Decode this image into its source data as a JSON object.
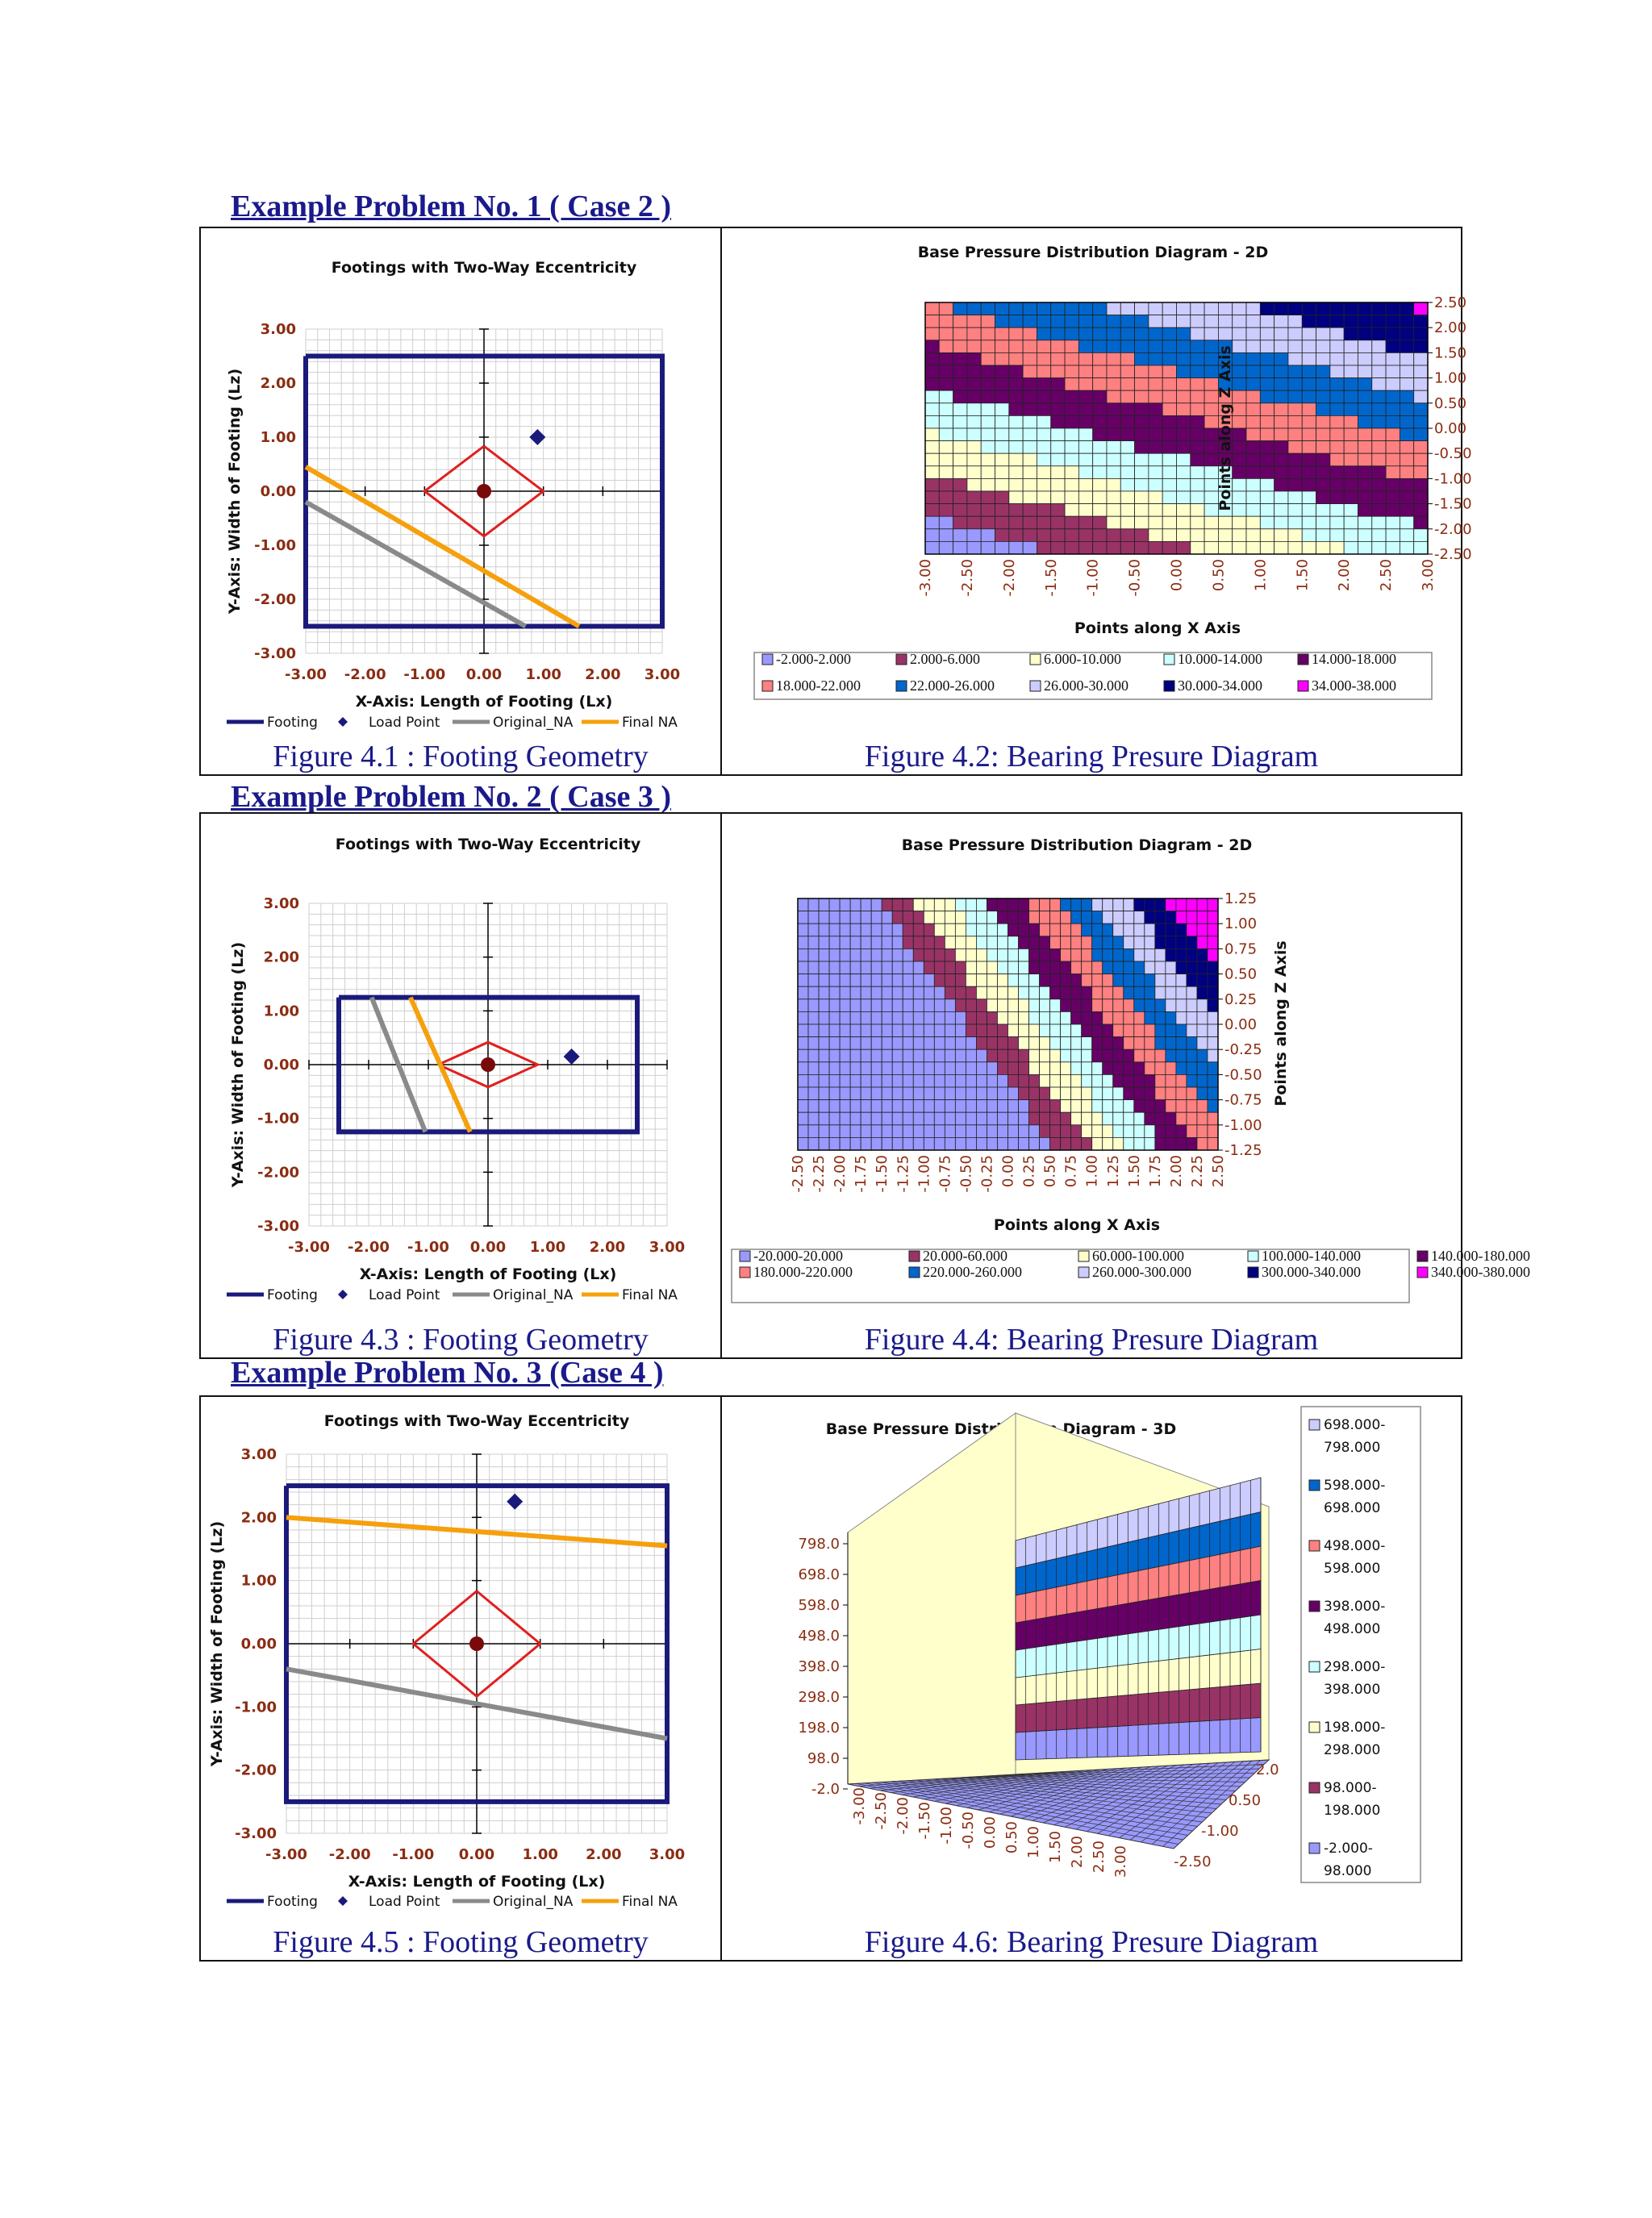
{
  "headings": [
    "Example Problem No. 1 ( Case 2 )",
    "Example Problem No. 2 ( Case 3 )",
    "Example Problem No. 3 (Case 4 )"
  ],
  "captions": [
    "Figure 4.1 : Footing Geometry",
    "Figure 4.2:  Bearing Presure Diagram",
    "Figure 4.3 : Footing Geometry",
    "Figure 4.4:  Bearing Presure Diagram",
    "Figure 4.5 : Footing Geometry",
    "Figure 4.6:  Bearing Presure Diagram"
  ],
  "chart_data": [
    {
      "type": "line",
      "title": "Footings with Two-Way Eccentricity",
      "xlabel": "X-Axis: Length of Footing (Lx)",
      "ylabel": "Y-Axis: Width of Footing (Lz)",
      "xlim": [
        -3,
        3
      ],
      "ylim": [
        -3,
        3
      ],
      "x_ticks": [
        "-3.00",
        "-2.00",
        "-1.00",
        "0.00",
        "1.00",
        "2.00",
        "3.00"
      ],
      "y_ticks": [
        "3.00",
        "2.00",
        "1.00",
        "0.00",
        "-1.00",
        "-2.00",
        "-3.00"
      ],
      "grid": true,
      "legend": [
        "Footing",
        "Load Point",
        "Original_NA",
        "Final NA"
      ],
      "colors": {
        "footing": "#1a1a7a",
        "load": "#1a1a7a",
        "original": "#8a8a8a",
        "final": "#f5a00c",
        "kern": "#e02020",
        "centroid": "#7a0a0a"
      },
      "footing": {
        "x": [
          -3,
          3,
          3,
          -3,
          -3
        ],
        "y": [
          2.5,
          2.5,
          -2.5,
          -2.5,
          2.5
        ]
      },
      "kern": {
        "x": [
          0,
          1,
          0,
          -1,
          0
        ],
        "y": [
          0.833,
          0,
          -0.833,
          0,
          0.833
        ]
      },
      "load_point": [
        0.9,
        1.0
      ],
      "original_na": {
        "x": [
          -3,
          0.7
        ],
        "y": [
          -0.2,
          -2.5
        ]
      },
      "final_na": {
        "x": [
          -3,
          1.6
        ],
        "y": [
          0.45,
          -2.5
        ]
      }
    },
    {
      "type": "heatmap",
      "title": "Base Pressure Distribution Diagram - 2D",
      "xlabel": "Points along X Axis",
      "ylabel": "Points along Z Axis",
      "x_ticks": [
        "-3.00",
        "-2.50",
        "-2.00",
        "-1.50",
        "-1.00",
        "-0.50",
        "0.00",
        "0.50",
        "1.00",
        "1.50",
        "2.00",
        "2.50",
        "3.00"
      ],
      "y_ticks": [
        "2.50",
        "2.00",
        "1.50",
        "1.00",
        "0.50",
        "0.00",
        "-0.50",
        "-1.00",
        "-1.50",
        "-2.00",
        "-2.50"
      ],
      "xlim": [
        -3,
        3
      ],
      "ylim": [
        -2.5,
        2.5
      ],
      "pressure_at": {
        "x0": -3,
        "z0": -2.5,
        "p0": -1.6,
        "dx": 2.2,
        "dz": 4.7
      },
      "bands": [
        {
          "label": "-2.000-2.000",
          "color": "#9999ff"
        },
        {
          "label": "2.000-6.000",
          "color": "#993366"
        },
        {
          "label": "6.000-10.000",
          "color": "#ffffcc"
        },
        {
          "label": "10.000-14.000",
          "color": "#ccffff"
        },
        {
          "label": "14.000-18.000",
          "color": "#660066"
        },
        {
          "label": "18.000-22.000",
          "color": "#ff8080"
        },
        {
          "label": "22.000-26.000",
          "color": "#0066cc"
        },
        {
          "label": "26.000-30.000",
          "color": "#ccccff"
        },
        {
          "label": "30.000-34.000",
          "color": "#000080"
        },
        {
          "label": "34.000-38.000",
          "color": "#ff00ff"
        }
      ],
      "band_min": -2,
      "band_step": 4
    },
    {
      "type": "line",
      "title": "Footings with Two-Way Eccentricity",
      "xlabel": "X-Axis: Length of Footing (Lx)",
      "ylabel": "Y-Axis: Width of Footing (Lz)",
      "xlim": [
        -3,
        3
      ],
      "ylim": [
        -3,
        3
      ],
      "x_ticks": [
        "-3.00",
        "-2.00",
        "-1.00",
        "0.00",
        "1.00",
        "2.00",
        "3.00"
      ],
      "y_ticks": [
        "3.00",
        "2.00",
        "1.00",
        "0.00",
        "-1.00",
        "-2.00",
        "-3.00"
      ],
      "grid": true,
      "legend": [
        "Footing",
        "Load Point",
        "Original_NA",
        "Final NA"
      ],
      "colors": {
        "footing": "#1a1a7a",
        "load": "#1a1a7a",
        "original": "#8a8a8a",
        "final": "#f5a00c",
        "kern": "#e02020",
        "centroid": "#7a0a0a"
      },
      "footing": {
        "x": [
          -2.5,
          2.5,
          2.5,
          -2.5,
          -2.5
        ],
        "y": [
          1.25,
          1.25,
          -1.25,
          -1.25,
          1.25
        ]
      },
      "kern": {
        "x": [
          -0.833,
          0,
          0.833,
          0,
          -0.833
        ],
        "y": [
          0,
          0.417,
          0,
          -0.417,
          0
        ]
      },
      "load_point": [
        1.4,
        0.15
      ],
      "original_na": {
        "x": [
          -1.95,
          -1.05
        ],
        "y": [
          1.25,
          -1.25
        ]
      },
      "final_na": {
        "x": [
          -1.3,
          -0.3
        ],
        "y": [
          1.25,
          -1.25
        ]
      }
    },
    {
      "type": "heatmap",
      "title": "Base Pressure Distribution Diagram - 2D",
      "xlabel": "Points along X Axis",
      "ylabel": "Points along Z Axis",
      "x_ticks": [
        "-2.50",
        "-2.25",
        "-2.00",
        "-1.75",
        "-1.50",
        "-1.25",
        "-1.00",
        "-0.75",
        "-0.50",
        "-0.25",
        "0.00",
        "0.25",
        "0.50",
        "0.75",
        "1.00",
        "1.25",
        "1.50",
        "1.75",
        "2.00",
        "2.25",
        "2.50"
      ],
      "y_ticks": [
        "1.25",
        "1.00",
        "0.75",
        "0.50",
        "0.25",
        "0.00",
        "-0.25",
        "-0.50",
        "-0.75",
        "-1.00",
        "-1.25"
      ],
      "xlim": [
        -2.5,
        2.5
      ],
      "ylim": [
        -1.25,
        1.25
      ],
      "pressure_at": {
        "x0": -0.5,
        "z0": 0,
        "p0": 20,
        "dx": 93,
        "dz": 80
      },
      "bands": [
        {
          "label": "-20.000-20.000",
          "color": "#9999ff"
        },
        {
          "label": "20.000-60.000",
          "color": "#993366"
        },
        {
          "label": "60.000-100.000",
          "color": "#ffffcc"
        },
        {
          "label": "100.000-140.000",
          "color": "#ccffff"
        },
        {
          "label": "140.000-180.000",
          "color": "#660066"
        },
        {
          "label": "180.000-220.000",
          "color": "#ff8080"
        },
        {
          "label": "220.000-260.000",
          "color": "#0066cc"
        },
        {
          "label": "260.000-300.000",
          "color": "#ccccff"
        },
        {
          "label": "300.000-340.000",
          "color": "#000080"
        },
        {
          "label": "340.000-380.000",
          "color": "#ff00ff"
        }
      ],
      "band_min": -20,
      "band_step": 40
    },
    {
      "type": "line",
      "title": "Footings with Two-Way Eccentricity",
      "xlabel": "X-Axis: Length of Footing (Lx)",
      "ylabel": "Y-Axis: Width of Footing (Lz)",
      "xlim": [
        -3,
        3
      ],
      "ylim": [
        -3,
        3
      ],
      "x_ticks": [
        "-3.00",
        "-2.00",
        "-1.00",
        "0.00",
        "1.00",
        "2.00",
        "3.00"
      ],
      "y_ticks": [
        "3.00",
        "2.00",
        "1.00",
        "0.00",
        "-1.00",
        "-2.00",
        "-3.00"
      ],
      "grid": true,
      "legend": [
        "Footing",
        "Load Point",
        "Original_NA",
        "Final NA"
      ],
      "colors": {
        "footing": "#1a1a7a",
        "load": "#1a1a7a",
        "original": "#8a8a8a",
        "final": "#f5a00c",
        "kern": "#e02020",
        "centroid": "#7a0a0a"
      },
      "footing": {
        "x": [
          -3,
          3,
          3,
          -3,
          -3
        ],
        "y": [
          2.5,
          2.5,
          -2.5,
          -2.5,
          2.5
        ]
      },
      "kern": {
        "x": [
          0,
          1,
          0,
          -1,
          0
        ],
        "y": [
          0.833,
          0,
          -0.833,
          0,
          0.833
        ]
      },
      "load_point": [
        0.6,
        2.25
      ],
      "original_na": {
        "x": [
          -3,
          3
        ],
        "y": [
          -0.4,
          -1.5
        ]
      },
      "final_na": {
        "x": [
          -3,
          3
        ],
        "y": [
          2.0,
          1.55
        ]
      }
    },
    {
      "type": "area",
      "title": "Base Pressure Distribution Diagram - 3D",
      "x_ticks": [
        "-3.00",
        "-2.50",
        "-2.00",
        "-1.50",
        "-1.00",
        "-0.50",
        "0.00",
        "0.50",
        "1.00",
        "1.50",
        "2.00",
        "2.50",
        "3.00"
      ],
      "z_ticks": [
        "798.0",
        "698.0",
        "598.0",
        "498.0",
        "398.0",
        "298.0",
        "198.0",
        "98.0",
        "-2.0"
      ],
      "depth_ticks": [
        "2.0",
        "0.50",
        "-1.00",
        "-2.50"
      ],
      "legend_placement": "right",
      "bands": [
        {
          "label": "698.000-798.000",
          "color": "#ccccff"
        },
        {
          "label": "598.000-698.000",
          "color": "#0066cc"
        },
        {
          "label": "498.000-598.000",
          "color": "#ff8080"
        },
        {
          "label": "398.000-498.000",
          "color": "#660066"
        },
        {
          "label": "298.000-398.000",
          "color": "#ccffff"
        },
        {
          "label": "198.000-298.000",
          "color": "#ffffcc"
        },
        {
          "label": "98.000-198.000",
          "color": "#993366"
        },
        {
          "label": "-2.000-98.000",
          "color": "#9999ff"
        }
      ]
    }
  ]
}
